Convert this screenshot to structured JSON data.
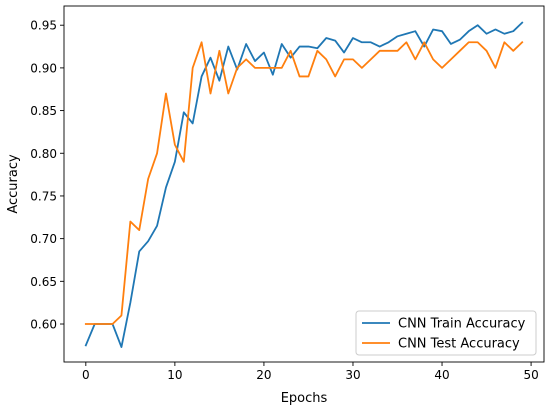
{
  "chart_data": {
    "type": "line",
    "title": "",
    "xlabel": "Epochs",
    "ylabel": "Accuracy",
    "xlim": [
      -2.45,
      51.45
    ],
    "ylim": [
      0.5555,
      0.9725
    ],
    "x_ticks": [
      0,
      10,
      20,
      30,
      40,
      50
    ],
    "x_tick_labels": [
      "0",
      "10",
      "20",
      "30",
      "40",
      "50"
    ],
    "y_ticks": [
      0.6,
      0.65,
      0.7,
      0.75,
      0.8,
      0.85,
      0.9,
      0.95
    ],
    "y_tick_labels": [
      "0.60",
      "0.65",
      "0.70",
      "0.75",
      "0.80",
      "0.85",
      "0.90",
      "0.95"
    ],
    "grid": false,
    "legend_position": "lower right",
    "x": [
      0,
      1,
      2,
      3,
      4,
      5,
      6,
      7,
      8,
      9,
      10,
      11,
      12,
      13,
      14,
      15,
      16,
      17,
      18,
      19,
      20,
      21,
      22,
      23,
      24,
      25,
      26,
      27,
      28,
      29,
      30,
      31,
      32,
      33,
      34,
      35,
      36,
      37,
      38,
      39,
      40,
      41,
      42,
      43,
      44,
      45,
      46,
      47,
      48,
      49
    ],
    "series": [
      {
        "name": "CNN Train Accuracy",
        "color": "#1f77b4",
        "values": [
          0.575,
          0.6,
          0.6,
          0.6,
          0.573,
          0.625,
          0.685,
          0.697,
          0.715,
          0.76,
          0.79,
          0.848,
          0.835,
          0.89,
          0.912,
          0.885,
          0.925,
          0.898,
          0.928,
          0.908,
          0.918,
          0.892,
          0.928,
          0.912,
          0.925,
          0.925,
          0.923,
          0.935,
          0.932,
          0.918,
          0.935,
          0.93,
          0.93,
          0.925,
          0.93,
          0.937,
          0.94,
          0.943,
          0.925,
          0.945,
          0.943,
          0.928,
          0.933,
          0.943,
          0.95,
          0.94,
          0.945,
          0.94,
          0.943,
          0.953
        ]
      },
      {
        "name": "CNN Test Accuracy",
        "color": "#ff7f0e",
        "values": [
          0.6,
          0.6,
          0.6,
          0.6,
          0.61,
          0.72,
          0.71,
          0.77,
          0.8,
          0.87,
          0.81,
          0.79,
          0.9,
          0.93,
          0.87,
          0.92,
          0.87,
          0.9,
          0.91,
          0.9,
          0.9,
          0.9,
          0.9,
          0.92,
          0.89,
          0.89,
          0.92,
          0.91,
          0.89,
          0.91,
          0.91,
          0.9,
          0.91,
          0.92,
          0.92,
          0.92,
          0.93,
          0.91,
          0.93,
          0.91,
          0.9,
          0.91,
          0.92,
          0.93,
          0.93,
          0.92,
          0.9,
          0.93,
          0.92,
          0.93
        ]
      }
    ]
  }
}
